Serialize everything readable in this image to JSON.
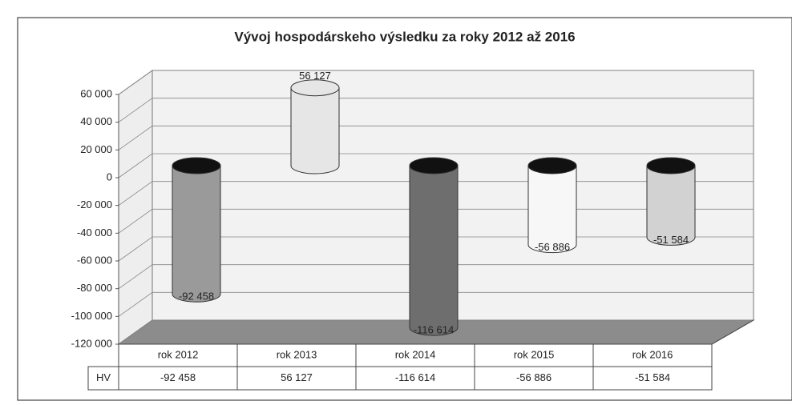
{
  "chart_data": {
    "type": "bar",
    "title": "Vývoj hospodárskeho výsledku za roky 2012 až 2016",
    "categories": [
      "rok 2012",
      "rok 2013",
      "rok 2014",
      "rok 2015",
      "rok 2016"
    ],
    "series": [
      {
        "name": "HV",
        "values": [
          -92458,
          56127,
          -116614,
          -56886,
          -51584
        ],
        "value_labels": [
          "-92 458",
          "56 127",
          "-116 614",
          "-56 886",
          "-51 584"
        ],
        "colors": [
          "#9a9a9a",
          "#e6e6e6",
          "#6e6e6e",
          "#f7f7f7",
          "#d2d2d2"
        ]
      }
    ],
    "ylim": [
      -120000,
      60000
    ],
    "yticks": [
      {
        "value": 60000,
        "label": "60 000"
      },
      {
        "value": 40000,
        "label": "40 000"
      },
      {
        "value": 20000,
        "label": "20 000"
      },
      0,
      {
        "value": -20000,
        "label": "-20 000"
      },
      {
        "value": -40000,
        "label": "-40 000"
      },
      {
        "value": -60000,
        "label": "-60 000"
      },
      {
        "value": -80000,
        "label": "-80 000"
      },
      {
        "value": -100000,
        "label": "-100 000"
      },
      {
        "value": -120000,
        "label": "-120 000"
      }
    ],
    "grid": true
  }
}
